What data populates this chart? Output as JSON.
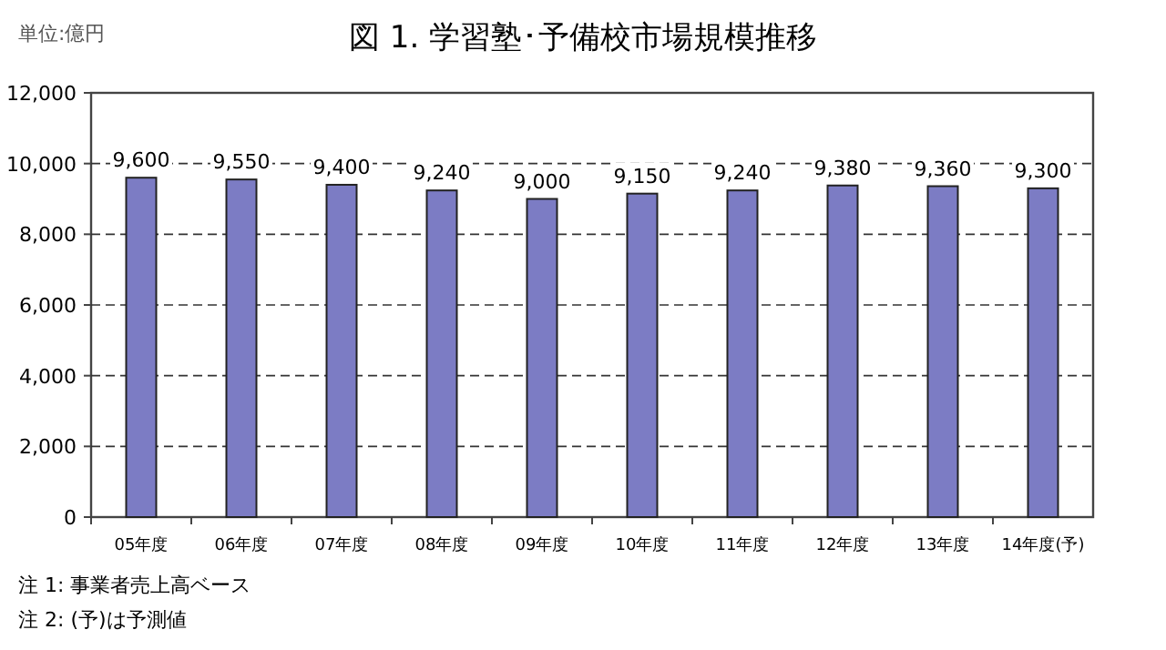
{
  "chart_data": {
    "type": "bar",
    "title": "図 1.  学習塾･予備校市場規模推移",
    "ylabel": "単位:億円",
    "categories": [
      "05年度",
      "06年度",
      "07年度",
      "08年度",
      "09年度",
      "10年度",
      "11年度",
      "12年度",
      "13年度",
      "14年度(予)"
    ],
    "values": [
      9600,
      9550,
      9400,
      9240,
      9000,
      9150,
      9240,
      9380,
      9360,
      9300
    ],
    "value_labels": [
      "9,600",
      "9,550",
      "9,400",
      "9,240",
      "9,000",
      "9,150",
      "9,240",
      "9,380",
      "9,360",
      "9,300"
    ],
    "color": "#7c7cc4",
    "ylim": [
      0,
      12000
    ],
    "yticks": [
      0,
      {
        "value": 2000,
        "label": "2,000"
      },
      {
        "value": 4000,
        "label": "4,000"
      },
      {
        "value": 6000,
        "label": "6,000"
      },
      {
        "value": 8000,
        "label": "8,000"
      },
      {
        "value": 10000,
        "label": "10,000"
      },
      {
        "value": 12000,
        "label": "12,000"
      }
    ],
    "grid": "y",
    "annotations": [
      "注 1:  事業者売上高ベース",
      "注 2:  (予)は予測値"
    ]
  }
}
